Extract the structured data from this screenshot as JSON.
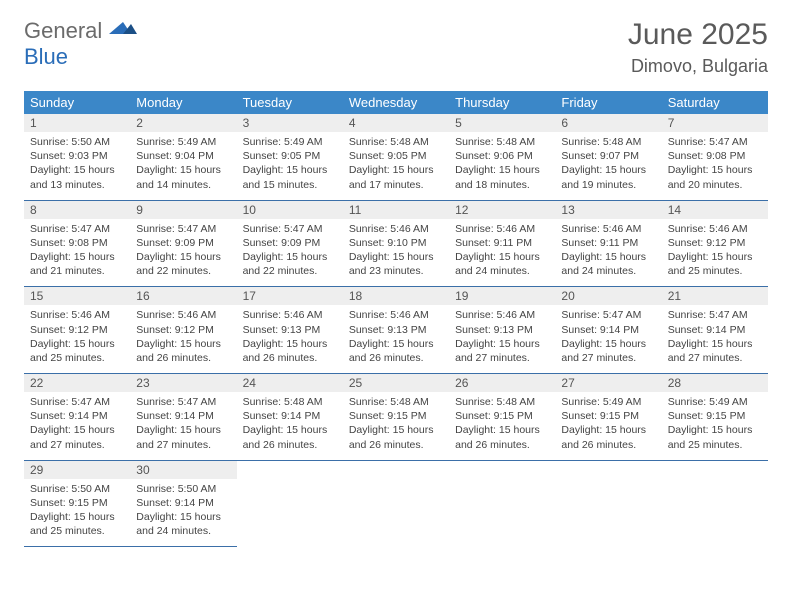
{
  "logo": {
    "word1": "General",
    "word2": "Blue"
  },
  "header": {
    "month": "June 2025",
    "location": "Dimovo, Bulgaria"
  },
  "style": {
    "header_bg": "#3b87c8",
    "header_text": "#ffffff",
    "daynum_bg": "#eeeeee",
    "border_color": "#3b6fa8",
    "title_color": "#5a5a5a",
    "title_fontsize": 30,
    "location_fontsize": 18,
    "cell_fontsize": 10.5
  },
  "weekdays": [
    "Sunday",
    "Monday",
    "Tuesday",
    "Wednesday",
    "Thursday",
    "Friday",
    "Saturday"
  ],
  "weeks": [
    [
      {
        "day": "1",
        "sunrise": "Sunrise: 5:50 AM",
        "sunset": "Sunset: 9:03 PM",
        "daylight": "Daylight: 15 hours and 13 minutes."
      },
      {
        "day": "2",
        "sunrise": "Sunrise: 5:49 AM",
        "sunset": "Sunset: 9:04 PM",
        "daylight": "Daylight: 15 hours and 14 minutes."
      },
      {
        "day": "3",
        "sunrise": "Sunrise: 5:49 AM",
        "sunset": "Sunset: 9:05 PM",
        "daylight": "Daylight: 15 hours and 15 minutes."
      },
      {
        "day": "4",
        "sunrise": "Sunrise: 5:48 AM",
        "sunset": "Sunset: 9:05 PM",
        "daylight": "Daylight: 15 hours and 17 minutes."
      },
      {
        "day": "5",
        "sunrise": "Sunrise: 5:48 AM",
        "sunset": "Sunset: 9:06 PM",
        "daylight": "Daylight: 15 hours and 18 minutes."
      },
      {
        "day": "6",
        "sunrise": "Sunrise: 5:48 AM",
        "sunset": "Sunset: 9:07 PM",
        "daylight": "Daylight: 15 hours and 19 minutes."
      },
      {
        "day": "7",
        "sunrise": "Sunrise: 5:47 AM",
        "sunset": "Sunset: 9:08 PM",
        "daylight": "Daylight: 15 hours and 20 minutes."
      }
    ],
    [
      {
        "day": "8",
        "sunrise": "Sunrise: 5:47 AM",
        "sunset": "Sunset: 9:08 PM",
        "daylight": "Daylight: 15 hours and 21 minutes."
      },
      {
        "day": "9",
        "sunrise": "Sunrise: 5:47 AM",
        "sunset": "Sunset: 9:09 PM",
        "daylight": "Daylight: 15 hours and 22 minutes."
      },
      {
        "day": "10",
        "sunrise": "Sunrise: 5:47 AM",
        "sunset": "Sunset: 9:09 PM",
        "daylight": "Daylight: 15 hours and 22 minutes."
      },
      {
        "day": "11",
        "sunrise": "Sunrise: 5:46 AM",
        "sunset": "Sunset: 9:10 PM",
        "daylight": "Daylight: 15 hours and 23 minutes."
      },
      {
        "day": "12",
        "sunrise": "Sunrise: 5:46 AM",
        "sunset": "Sunset: 9:11 PM",
        "daylight": "Daylight: 15 hours and 24 minutes."
      },
      {
        "day": "13",
        "sunrise": "Sunrise: 5:46 AM",
        "sunset": "Sunset: 9:11 PM",
        "daylight": "Daylight: 15 hours and 24 minutes."
      },
      {
        "day": "14",
        "sunrise": "Sunrise: 5:46 AM",
        "sunset": "Sunset: 9:12 PM",
        "daylight": "Daylight: 15 hours and 25 minutes."
      }
    ],
    [
      {
        "day": "15",
        "sunrise": "Sunrise: 5:46 AM",
        "sunset": "Sunset: 9:12 PM",
        "daylight": "Daylight: 15 hours and 25 minutes."
      },
      {
        "day": "16",
        "sunrise": "Sunrise: 5:46 AM",
        "sunset": "Sunset: 9:12 PM",
        "daylight": "Daylight: 15 hours and 26 minutes."
      },
      {
        "day": "17",
        "sunrise": "Sunrise: 5:46 AM",
        "sunset": "Sunset: 9:13 PM",
        "daylight": "Daylight: 15 hours and 26 minutes."
      },
      {
        "day": "18",
        "sunrise": "Sunrise: 5:46 AM",
        "sunset": "Sunset: 9:13 PM",
        "daylight": "Daylight: 15 hours and 26 minutes."
      },
      {
        "day": "19",
        "sunrise": "Sunrise: 5:46 AM",
        "sunset": "Sunset: 9:13 PM",
        "daylight": "Daylight: 15 hours and 27 minutes."
      },
      {
        "day": "20",
        "sunrise": "Sunrise: 5:47 AM",
        "sunset": "Sunset: 9:14 PM",
        "daylight": "Daylight: 15 hours and 27 minutes."
      },
      {
        "day": "21",
        "sunrise": "Sunrise: 5:47 AM",
        "sunset": "Sunset: 9:14 PM",
        "daylight": "Daylight: 15 hours and 27 minutes."
      }
    ],
    [
      {
        "day": "22",
        "sunrise": "Sunrise: 5:47 AM",
        "sunset": "Sunset: 9:14 PM",
        "daylight": "Daylight: 15 hours and 27 minutes."
      },
      {
        "day": "23",
        "sunrise": "Sunrise: 5:47 AM",
        "sunset": "Sunset: 9:14 PM",
        "daylight": "Daylight: 15 hours and 27 minutes."
      },
      {
        "day": "24",
        "sunrise": "Sunrise: 5:48 AM",
        "sunset": "Sunset: 9:14 PM",
        "daylight": "Daylight: 15 hours and 26 minutes."
      },
      {
        "day": "25",
        "sunrise": "Sunrise: 5:48 AM",
        "sunset": "Sunset: 9:15 PM",
        "daylight": "Daylight: 15 hours and 26 minutes."
      },
      {
        "day": "26",
        "sunrise": "Sunrise: 5:48 AM",
        "sunset": "Sunset: 9:15 PM",
        "daylight": "Daylight: 15 hours and 26 minutes."
      },
      {
        "day": "27",
        "sunrise": "Sunrise: 5:49 AM",
        "sunset": "Sunset: 9:15 PM",
        "daylight": "Daylight: 15 hours and 26 minutes."
      },
      {
        "day": "28",
        "sunrise": "Sunrise: 5:49 AM",
        "sunset": "Sunset: 9:15 PM",
        "daylight": "Daylight: 15 hours and 25 minutes."
      }
    ],
    [
      {
        "day": "29",
        "sunrise": "Sunrise: 5:50 AM",
        "sunset": "Sunset: 9:15 PM",
        "daylight": "Daylight: 15 hours and 25 minutes."
      },
      {
        "day": "30",
        "sunrise": "Sunrise: 5:50 AM",
        "sunset": "Sunset: 9:14 PM",
        "daylight": "Daylight: 15 hours and 24 minutes."
      },
      null,
      null,
      null,
      null,
      null
    ]
  ]
}
